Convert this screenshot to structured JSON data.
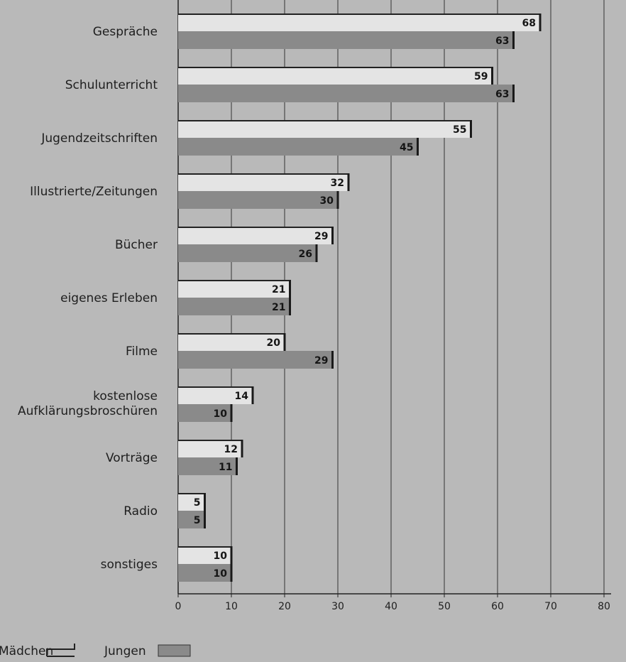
{
  "chart_data": {
    "type": "bar",
    "orientation": "horizontal",
    "categories": [
      "Gespräche",
      "Schulunterricht",
      "Jugendzeitschriften",
      "Illustrierte/Zeitungen",
      "Bücher",
      "eigenes Erleben",
      "Filme",
      "kostenlose Aufklärungsbroschüren",
      "Vorträge",
      "Radio",
      "sonstiges"
    ],
    "series": [
      {
        "name": "Mädchen",
        "values": [
          68,
          59,
          55,
          32,
          29,
          21,
          20,
          14,
          12,
          5,
          10
        ],
        "color": "#e4e4e4"
      },
      {
        "name": "Jungen",
        "values": [
          63,
          63,
          45,
          30,
          26,
          21,
          29,
          10,
          11,
          5,
          10
        ],
        "color": "#8a8a8a"
      }
    ],
    "xlim": [
      0,
      80
    ],
    "xticks": [
      0,
      10,
      20,
      30,
      40,
      50,
      60,
      70,
      80
    ],
    "grid": true,
    "legend_position": "bottom-left",
    "title": "",
    "xlabel": "",
    "ylabel": ""
  }
}
